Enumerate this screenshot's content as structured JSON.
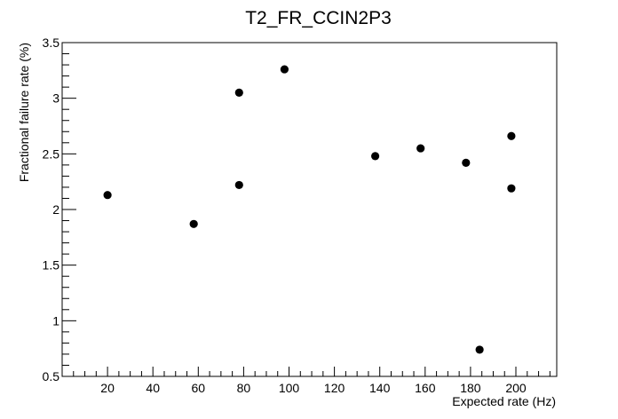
{
  "chart_data": {
    "type": "scatter",
    "title": "T2_FR_CCIN2P3",
    "xlabel": "Expected rate (Hz)",
    "ylabel": "Fractional failure rate (%)",
    "xlim": [
      0,
      218
    ],
    "ylim": [
      0.5,
      3.5
    ],
    "xticks": [
      20,
      40,
      60,
      80,
      100,
      120,
      140,
      160,
      180,
      200
    ],
    "xtick_labels": [
      "20",
      "40",
      "60",
      "80",
      "100",
      "120",
      "140",
      "160",
      "180",
      "200"
    ],
    "yticks": [
      0.5,
      1,
      1.5,
      2,
      2.5,
      3,
      3.5
    ],
    "ytick_labels": [
      "0.5",
      "1",
      "1.5",
      "2",
      "2.5",
      "3",
      "3.5"
    ],
    "grid": false,
    "legend": "none",
    "marker_color": "#000000",
    "points": [
      {
        "x": 20,
        "y": 2.13
      },
      {
        "x": 58,
        "y": 1.87
      },
      {
        "x": 78,
        "y": 3.05
      },
      {
        "x": 78,
        "y": 2.22
      },
      {
        "x": 98,
        "y": 3.26
      },
      {
        "x": 138,
        "y": 2.48
      },
      {
        "x": 158,
        "y": 2.55
      },
      {
        "x": 178,
        "y": 2.42
      },
      {
        "x": 184,
        "y": 0.74
      },
      {
        "x": 198,
        "y": 2.66
      },
      {
        "x": 198,
        "y": 2.19
      }
    ]
  }
}
